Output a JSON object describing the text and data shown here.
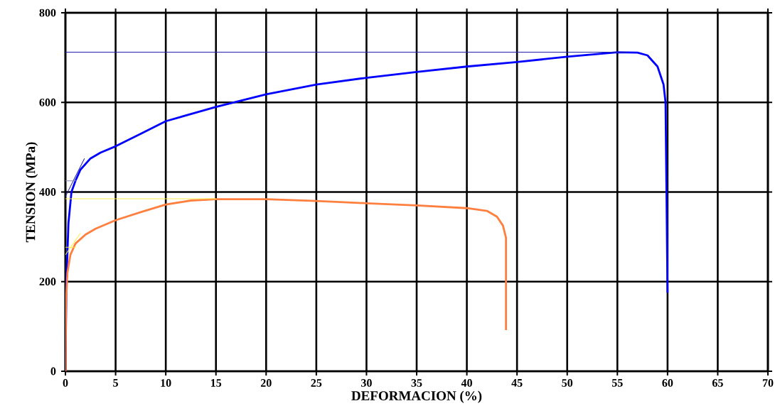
{
  "chart_data": {
    "type": "line",
    "xlabel": "DEFORMACION (%)",
    "ylabel": "TENSION (MPa)",
    "xlim": [
      0,
      70
    ],
    "ylim": [
      0,
      800
    ],
    "xticks": [
      0,
      5,
      10,
      15,
      20,
      25,
      30,
      35,
      40,
      45,
      50,
      55,
      60,
      65,
      70
    ],
    "yticks": [
      0,
      200,
      400,
      600,
      800
    ],
    "grid": true,
    "marker": "none",
    "line_style": "solid",
    "series": [
      {
        "color": "#0000ff",
        "x": [
          0,
          0.1,
          0.3,
          0.6,
          1.0,
          1.5,
          2.5,
          3.5,
          5,
          7.5,
          10,
          15,
          20,
          25,
          30,
          35,
          40,
          45,
          50,
          55,
          57,
          58,
          59,
          59.6,
          59.8,
          60.0
        ],
        "values": [
          0,
          200,
          330,
          400,
          425,
          450,
          475,
          488,
          502,
          530,
          558,
          590,
          618,
          640,
          655,
          668,
          680,
          690,
          702,
          712,
          711,
          705,
          680,
          640,
          600,
          175
        ]
      },
      {
        "color": "#ff7f3f",
        "x": [
          0,
          0.05,
          0.2,
          0.5,
          1,
          2,
          3,
          5,
          7.5,
          10,
          12.5,
          15,
          20,
          25,
          30,
          35,
          40,
          42,
          43,
          43.6,
          43.9,
          43.9
        ],
        "values": [
          0,
          150,
          220,
          260,
          285,
          305,
          318,
          337,
          355,
          372,
          381,
          384,
          384,
          380,
          375,
          370,
          364,
          358,
          345,
          325,
          298,
          92
        ]
      },
      {
        "color": "#2222aa",
        "x": [
          0,
          56
        ],
        "values": [
          712,
          712
        ]
      },
      {
        "color": "#ffee44",
        "x": [
          0,
          15
        ],
        "values": [
          385,
          385
        ]
      },
      {
        "color": "#2222aa",
        "x": [
          0,
          1.9
        ],
        "values": [
          390,
          475
        ]
      },
      {
        "color": "#8888bb",
        "x": [
          0,
          1.1
        ],
        "values": [
          425,
          425
        ]
      },
      {
        "color": "#ffee44",
        "x": [
          0,
          1.5
        ],
        "values": [
          260,
          308
        ]
      },
      {
        "color": "#ffee44",
        "x": [
          0,
          1.06
        ],
        "values": [
          277,
          277
        ]
      }
    ]
  }
}
